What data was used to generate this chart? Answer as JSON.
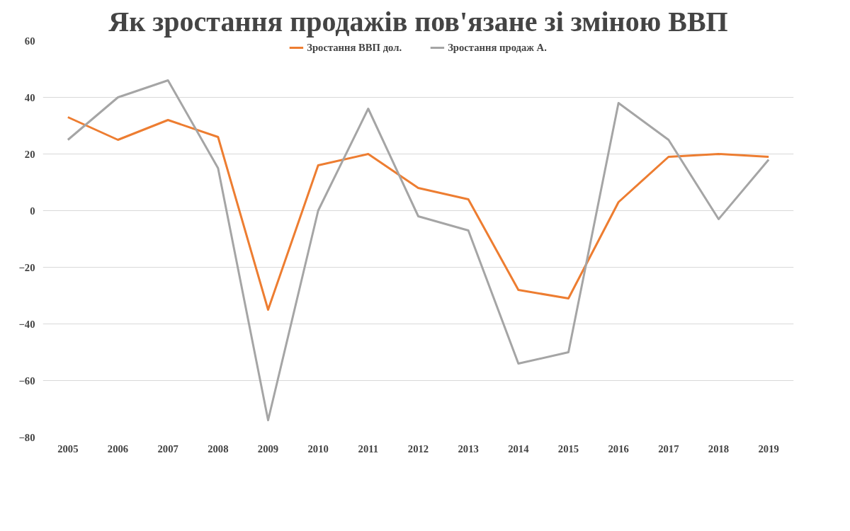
{
  "chart_data": {
    "type": "line",
    "title": "Як зростання продажів пов'язане зі зміною ВВП",
    "categories": [
      "2005",
      "2006",
      "2007",
      "2008",
      "2009",
      "2010",
      "2011",
      "2012",
      "2013",
      "2014",
      "2015",
      "2016",
      "2017",
      "2018",
      "2019"
    ],
    "series": [
      {
        "name": "Зростання ВВП дол.",
        "color": "#ed7d31",
        "values": [
          33,
          25,
          32,
          26,
          -35,
          16,
          20,
          8,
          4,
          -28,
          -31,
          3,
          19,
          20,
          19
        ]
      },
      {
        "name": "Зростання продаж А.",
        "color": "#a5a5a5",
        "values": [
          25,
          40,
          46,
          15,
          -74,
          0,
          36,
          -2,
          -7,
          -54,
          -50,
          38,
          25,
          -3,
          18
        ]
      }
    ],
    "ylim": [
      -80,
      60
    ],
    "yticks": [
      -80,
      -60,
      -40,
      -20,
      0,
      20,
      40,
      60
    ],
    "grid": "y",
    "legend": "top",
    "marker": "none",
    "line_style": "solid"
  }
}
